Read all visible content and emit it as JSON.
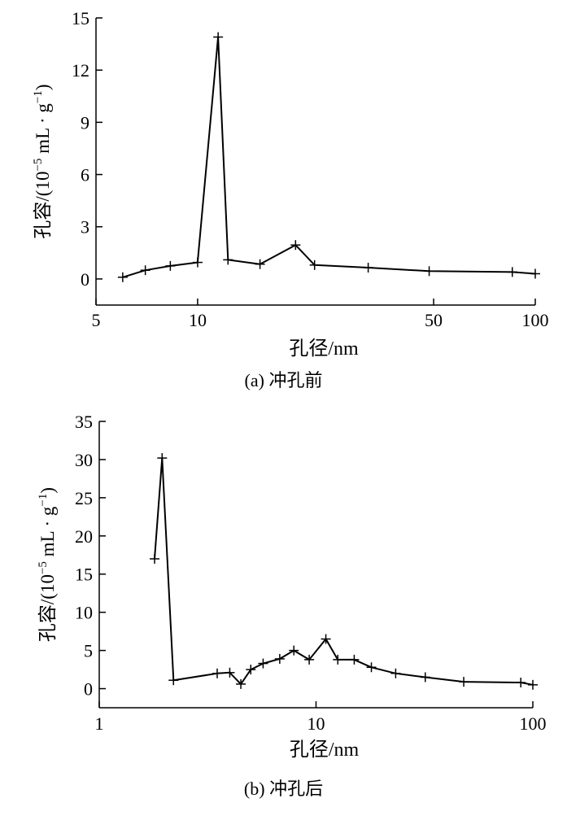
{
  "chart_data": [
    {
      "type": "line",
      "caption": "(a) 冲孔前",
      "xlabel": "孔径/nm",
      "ylabel_main": "孔容/(10",
      "ylabel_exp": "−5",
      "ylabel_unit": " mL · g",
      "ylabel_exp2": "−1",
      "ylabel_close": ")",
      "x_scale": "log",
      "xlim": [
        5,
        100
      ],
      "ylim": [
        -1.5,
        15
      ],
      "x_ticks": [
        5,
        10,
        50,
        100
      ],
      "y_ticks": [
        0,
        3,
        6,
        9,
        12,
        15
      ],
      "grid": false,
      "series": [
        {
          "points": [
            [
              6,
              0.1
            ],
            [
              7,
              0.5
            ],
            [
              8.3,
              0.75
            ],
            [
              10,
              0.95
            ],
            [
              11.5,
              13.9
            ],
            [
              12.3,
              1.1
            ],
            [
              15.3,
              0.85
            ],
            [
              19.5,
              1.95
            ],
            [
              22.2,
              0.8
            ],
            [
              32,
              0.65
            ],
            [
              48.5,
              0.45
            ],
            [
              85.5,
              0.4
            ],
            [
              100,
              0.3
            ]
          ]
        }
      ]
    },
    {
      "type": "line",
      "caption": "(b) 冲孔后",
      "xlabel": "孔径/nm",
      "ylabel_main": "孔容/(10",
      "ylabel_exp": "−5",
      "ylabel_unit": " mL · g",
      "ylabel_exp2": "−1",
      "ylabel_close": ")",
      "x_scale": "log",
      "xlim": [
        1,
        100
      ],
      "ylim": [
        -2.5,
        35
      ],
      "x_ticks": [
        1,
        10,
        100
      ],
      "y_ticks": [
        0,
        5,
        10,
        15,
        20,
        25,
        30,
        35
      ],
      "grid": false,
      "series": [
        {
          "points": [
            [
              1.8,
              17
            ],
            [
              1.95,
              30.2
            ],
            [
              2.2,
              1.1
            ],
            [
              3.5,
              2
            ],
            [
              4,
              2.1
            ],
            [
              4.5,
              0.6
            ],
            [
              5,
              2.5
            ],
            [
              5.7,
              3.3
            ],
            [
              6.8,
              3.9
            ],
            [
              7.9,
              5
            ],
            [
              9.3,
              3.8
            ],
            [
              11.1,
              6.5
            ],
            [
              12.6,
              3.8
            ],
            [
              15,
              3.8
            ],
            [
              18,
              2.8
            ],
            [
              23.3,
              2
            ],
            [
              31.9,
              1.5
            ],
            [
              48,
              0.9
            ],
            [
              88,
              0.8
            ],
            [
              100,
              0.5
            ]
          ]
        }
      ]
    }
  ]
}
